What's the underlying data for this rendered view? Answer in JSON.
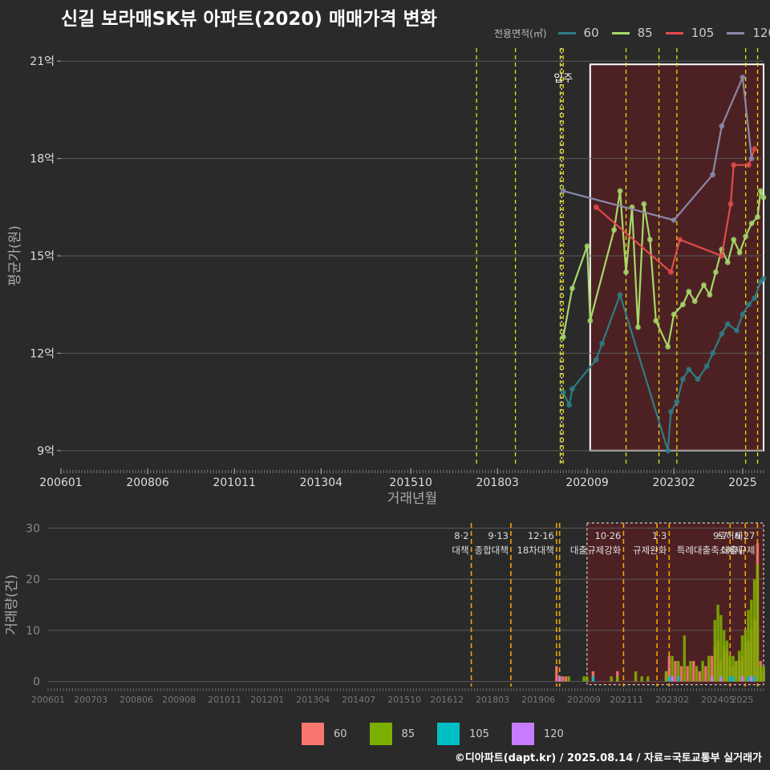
{
  "title": "신길 보라매SK뷰 아파트(2020) 매매가격 변화",
  "credit": "©디아파트(dapt.kr) / 2025.08.14 / 자료=국토교통부 실거래가",
  "colors": {
    "background": "#2a2a2b",
    "grid": "#5a5a5a",
    "policy_line_top": "#e8e000",
    "policy_line_bottom": "#f0a500",
    "highlight_fill": "#5a1f22",
    "line_60": "#2e7d85",
    "line_85": "#a5d86a",
    "line_105": "#e24b4b",
    "line_120": "#8a88a8",
    "bar_60": "#f8766d",
    "bar_85": "#7cae00",
    "bar_105": "#00bfc4",
    "bar_120": "#c77cff"
  },
  "chart_data": [
    {
      "type": "line",
      "title": "신길 보라매SK뷰 아파트(2020) 매매가격 변화",
      "xlabel": "거래년월",
      "ylabel": "평균가(원)",
      "legend_title": "전용면적(㎡)",
      "legend_position": "top-right",
      "x_range": [
        "2006-01",
        "2025-08"
      ],
      "x_ticks": [
        "200601",
        "200806",
        "201011",
        "201304",
        "201510",
        "201803",
        "202009",
        "202302",
        "2025"
      ],
      "y_range": [
        8.6,
        21.4
      ],
      "y_ticks": [
        9,
        12,
        15,
        18,
        21
      ],
      "y_tick_labels": [
        "9억",
        "12억",
        "15억",
        "18억",
        "21억"
      ],
      "grid": true,
      "annotation": "입주",
      "annotation_date": "2020-01",
      "highlight_region": [
        "2020-10",
        "2025-08"
      ],
      "policy_dates": [
        "2017-08",
        "2018-09",
        "2019-12",
        "2020-01",
        "2021-10",
        "2022-09",
        "2023-03",
        "2025-02",
        "2025-06"
      ],
      "series": [
        {
          "name": "60",
          "points": [
            [
              "2020-01",
              10.8
            ],
            [
              "2020-03",
              10.4
            ],
            [
              "2020-04",
              10.9
            ],
            [
              "2020-12",
              11.8
            ],
            [
              "2021-02",
              12.3
            ],
            [
              "2021-08",
              13.8
            ],
            [
              "2022-12",
              9.0
            ],
            [
              "2023-01",
              10.2
            ],
            [
              "2023-03",
              10.5
            ],
            [
              "2023-05",
              11.2
            ],
            [
              "2023-07",
              11.5
            ],
            [
              "2023-10",
              11.2
            ],
            [
              "2024-01",
              11.6
            ],
            [
              "2024-03",
              12.0
            ],
            [
              "2024-06",
              12.6
            ],
            [
              "2024-08",
              12.9
            ],
            [
              "2024-11",
              12.7
            ],
            [
              "2025-01",
              13.2
            ],
            [
              "2025-03",
              13.5
            ],
            [
              "2025-05",
              13.7
            ],
            [
              "2025-07",
              14.2
            ],
            [
              "2025-08",
              14.3
            ]
          ]
        },
        {
          "name": "85",
          "points": [
            [
              "2020-01",
              12.5
            ],
            [
              "2020-04",
              14.0
            ],
            [
              "2020-09",
              15.3
            ],
            [
              "2020-10",
              13.0
            ],
            [
              "2021-06",
              15.8
            ],
            [
              "2021-08",
              17.0
            ],
            [
              "2021-10",
              14.5
            ],
            [
              "2021-12",
              16.5
            ],
            [
              "2022-02",
              12.8
            ],
            [
              "2022-04",
              16.6
            ],
            [
              "2022-06",
              15.5
            ],
            [
              "2022-08",
              13.0
            ],
            [
              "2022-12",
              12.2
            ],
            [
              "2023-02",
              13.2
            ],
            [
              "2023-05",
              13.5
            ],
            [
              "2023-07",
              13.9
            ],
            [
              "2023-09",
              13.6
            ],
            [
              "2023-12",
              14.1
            ],
            [
              "2024-02",
              13.8
            ],
            [
              "2024-04",
              14.5
            ],
            [
              "2024-06",
              15.2
            ],
            [
              "2024-08",
              14.8
            ],
            [
              "2024-10",
              15.5
            ],
            [
              "2024-12",
              15.1
            ],
            [
              "2025-02",
              15.6
            ],
            [
              "2025-04",
              16.0
            ],
            [
              "2025-06",
              16.2
            ],
            [
              "2025-07",
              17.0
            ],
            [
              "2025-08",
              16.8
            ]
          ]
        },
        {
          "name": "105",
          "points": [
            [
              "2020-12",
              16.5
            ],
            [
              "2023-01",
              14.5
            ],
            [
              "2023-04",
              15.5
            ],
            [
              "2024-06",
              15.0
            ],
            [
              "2024-09",
              16.6
            ],
            [
              "2024-10",
              17.8
            ],
            [
              "2025-03",
              17.8
            ],
            [
              "2025-05",
              18.3
            ]
          ]
        },
        {
          "name": "120",
          "points": [
            [
              "2020-01",
              17.0
            ],
            [
              "2023-02",
              16.1
            ],
            [
              "2024-03",
              17.5
            ],
            [
              "2024-06",
              19.0
            ],
            [
              "2025-01",
              20.5
            ],
            [
              "2025-04",
              18.0
            ]
          ]
        }
      ]
    },
    {
      "type": "bar",
      "ylabel": "거래량(건)",
      "x_range": [
        "2006-01",
        "2025-08"
      ],
      "x_ticks": [
        "200601",
        "200703",
        "200806",
        "200908",
        "201011",
        "201201",
        "201304",
        "201407",
        "201510",
        "201612",
        "201803",
        "201906",
        "202009",
        "202111",
        "202302",
        "202405",
        "2025"
      ],
      "y_range": [
        -1,
        31
      ],
      "y_ticks": [
        0,
        10,
        20,
        30
      ],
      "grid": true,
      "legend_position": "bottom",
      "highlight_region": [
        "2020-10",
        "2025-08"
      ],
      "policy_events": [
        {
          "date": "2017-08",
          "label": "8·2 대책"
        },
        {
          "date": "2018-09",
          "label": "9·13 종합대책"
        },
        {
          "date": "2019-12",
          "label": "12·16 18차대책"
        },
        {
          "date": "2020-01",
          "label": ""
        },
        {
          "date": "2021-10",
          "label": "10·26 대출규제강화"
        },
        {
          "date": "2022-09",
          "label": ""
        },
        {
          "date": "2023-01",
          "label": "1·3 규제완화"
        },
        {
          "date": "2024-09",
          "label": "9·7 특례대출축소"
        },
        {
          "date": "2025-02",
          "label": "토허제 해제"
        },
        {
          "date": "2025-06",
          "label": "6·27 대출규제"
        }
      ],
      "series": [
        {
          "name": "60",
          "values": [
            [
              "2019-12",
              3
            ],
            [
              "2020-01",
              1
            ],
            [
              "2020-02",
              1
            ],
            [
              "2020-03",
              1
            ],
            [
              "2020-12",
              2
            ],
            [
              "2021-08",
              2
            ],
            [
              "2022-12",
              2
            ],
            [
              "2023-01",
              5
            ],
            [
              "2023-03",
              4
            ],
            [
              "2023-05",
              3
            ],
            [
              "2023-07",
              3
            ],
            [
              "2023-09",
              4
            ],
            [
              "2023-11",
              2
            ],
            [
              "2024-01",
              3
            ],
            [
              "2024-03",
              5
            ],
            [
              "2024-04",
              7
            ],
            [
              "2024-05",
              8
            ],
            [
              "2024-06",
              4
            ],
            [
              "2024-07",
              7
            ],
            [
              "2024-08",
              6
            ],
            [
              "2024-09",
              3
            ],
            [
              "2024-10",
              3
            ],
            [
              "2024-11",
              4
            ],
            [
              "2024-12",
              4
            ],
            [
              "2025-01",
              5
            ],
            [
              "2025-02",
              8
            ],
            [
              "2025-03",
              8
            ],
            [
              "2025-04",
              10
            ],
            [
              "2025-05",
              12
            ],
            [
              "2025-06",
              27
            ],
            [
              "2025-07",
              4
            ],
            [
              "2025-08",
              2
            ]
          ]
        },
        {
          "name": "85",
          "values": [
            [
              "2020-01",
              1
            ],
            [
              "2020-04",
              1
            ],
            [
              "2020-09",
              1
            ],
            [
              "2020-10",
              1
            ],
            [
              "2021-06",
              1
            ],
            [
              "2021-08",
              1
            ],
            [
              "2022-02",
              2
            ],
            [
              "2022-04",
              1
            ],
            [
              "2022-06",
              1
            ],
            [
              "2022-12",
              2
            ],
            [
              "2023-02",
              5
            ],
            [
              "2023-04",
              4
            ],
            [
              "2023-06",
              9
            ],
            [
              "2023-08",
              4
            ],
            [
              "2023-10",
              3
            ],
            [
              "2023-12",
              4
            ],
            [
              "2024-02",
              5
            ],
            [
              "2024-04",
              12
            ],
            [
              "2024-05",
              15
            ],
            [
              "2024-06",
              13
            ],
            [
              "2024-07",
              10
            ],
            [
              "2024-08",
              8
            ],
            [
              "2024-09",
              5
            ],
            [
              "2024-10",
              5
            ],
            [
              "2024-11",
              4
            ],
            [
              "2024-12",
              6
            ],
            [
              "2025-01",
              9
            ],
            [
              "2025-02",
              10
            ],
            [
              "2025-03",
              14
            ],
            [
              "2025-04",
              16
            ],
            [
              "2025-05",
              20
            ],
            [
              "2025-06",
              23
            ],
            [
              "2025-07",
              3
            ],
            [
              "2025-08",
              3
            ]
          ]
        },
        {
          "name": "105",
          "values": [
            [
              "2020-12",
              1
            ],
            [
              "2023-01",
              1
            ],
            [
              "2023-04",
              1
            ],
            [
              "2024-06",
              1
            ],
            [
              "2024-09",
              1
            ],
            [
              "2024-10",
              1
            ],
            [
              "2025-03",
              1
            ],
            [
              "2025-05",
              1
            ]
          ]
        },
        {
          "name": "120",
          "values": [
            [
              "2020-01",
              1
            ],
            [
              "2023-02",
              1
            ],
            [
              "2024-03",
              1
            ],
            [
              "2024-06",
              1
            ],
            [
              "2025-01",
              1
            ],
            [
              "2025-04",
              1
            ]
          ]
        }
      ]
    }
  ]
}
